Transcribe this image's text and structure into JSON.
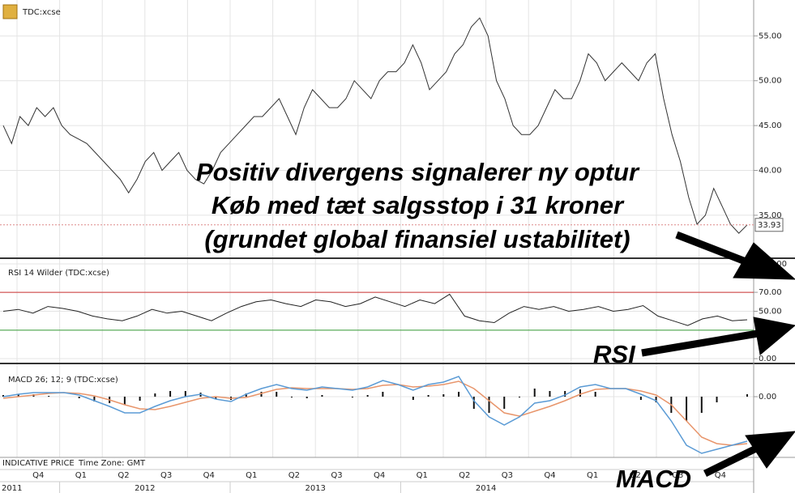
{
  "header": {
    "symbol": "TDC:xcse",
    "rsi_title": "RSI 14 Wilder (TDC:xcse)",
    "macd_title": "MACD 26; 12; 9 (TDC:xcse)",
    "note": "INDICATIVE PRICE",
    "timezone": "Time Zone: GMT"
  },
  "annotation": {
    "lines": [
      "Positiv divergens signalerer ny optur",
      "Køb med tæt salgsstop i 31 kroner",
      "(grundet global finansiel ustabilitet)"
    ],
    "rsi": "RSI",
    "macd": "MACD"
  },
  "axis": {
    "quarters": [
      "Q4",
      "Q1",
      "Q2",
      "Q3",
      "Q4",
      "Q1",
      "Q2",
      "Q3",
      "Q4",
      "Q1",
      "Q2",
      "Q3",
      "Q4",
      "Q1",
      "Q2",
      "Q3",
      "Q4"
    ],
    "years": [
      "2011",
      "2012",
      "2013",
      "2014"
    ]
  },
  "chart_data": [
    {
      "type": "line",
      "name": "price",
      "color": "#333333",
      "ylim": [
        30.3,
        59
      ],
      "yticks": [
        {
          "value": 35,
          "label": "35.00"
        },
        {
          "value": 40,
          "label": "40.00"
        },
        {
          "value": 45,
          "label": "45.00"
        },
        {
          "value": 50,
          "label": "50.00"
        },
        {
          "value": 55,
          "label": "55.00"
        }
      ],
      "last_price": 33.93,
      "values": [
        45,
        43,
        46,
        45,
        47,
        46,
        47,
        45,
        44,
        43.5,
        43,
        42,
        41,
        40,
        39,
        37.5,
        39,
        41,
        42,
        40,
        41,
        42,
        40,
        39,
        38.5,
        40,
        42,
        43,
        44,
        45,
        46,
        46,
        47,
        48,
        46,
        44,
        47,
        49,
        48,
        47,
        47,
        48,
        50,
        49,
        48,
        50,
        51,
        51,
        52,
        54,
        52,
        49,
        50,
        51,
        53,
        54,
        56,
        57,
        55,
        50,
        48,
        45,
        44,
        44,
        45,
        47,
        49,
        48,
        48,
        50,
        53,
        52,
        50,
        51,
        52,
        51,
        50,
        52,
        53,
        48,
        44,
        41,
        37,
        34,
        35,
        38,
        36,
        34,
        33,
        33.93
      ]
    },
    {
      "type": "line",
      "name": "rsi",
      "color": "#222222",
      "ylim": [
        -3.4,
        103.4
      ],
      "yticks": [
        {
          "value": 0,
          "label": "0.00"
        },
        {
          "value": 50,
          "label": "50.00"
        },
        {
          "value": 70,
          "label": "70.00"
        },
        {
          "value": 100,
          "label": "100.00"
        }
      ],
      "levels": [
        {
          "value": 70,
          "color": "#cc3333"
        },
        {
          "value": 30,
          "color": "#339933"
        }
      ],
      "values": [
        50,
        52,
        48,
        55,
        53,
        50,
        45,
        42,
        40,
        45,
        52,
        48,
        50,
        45,
        40,
        48,
        55,
        60,
        62,
        58,
        55,
        62,
        60,
        55,
        58,
        65,
        60,
        55,
        62,
        58,
        68,
        45,
        40,
        38,
        48,
        55,
        52,
        55,
        50,
        52,
        55,
        50,
        52,
        56,
        45,
        40,
        35,
        42,
        45,
        40,
        41
      ]
    },
    {
      "type": "macd",
      "name": "macd",
      "ylim": [
        -7.5,
        3.8
      ],
      "yticks": [
        {
          "value": 0,
          "label": "0.00"
        }
      ],
      "series": [
        {
          "color": "#5b9bd5",
          "values": [
            0,
            0.3,
            0.5,
            0.5,
            0.5,
            0.2,
            -0.5,
            -1.2,
            -2.0,
            -2.0,
            -1.2,
            -0.5,
            0,
            0.3,
            -0.3,
            -0.6,
            0.3,
            1.0,
            1.5,
            1.0,
            0.8,
            1.2,
            1.0,
            0.8,
            1.2,
            2.0,
            1.5,
            0.8,
            1.5,
            1.8,
            2.5,
            -0.5,
            -2.5,
            -3.5,
            -2.5,
            -0.8,
            -0.5,
            0.2,
            1.2,
            1.5,
            1.0,
            1.0,
            0.3,
            -0.5,
            -3.0,
            -6.0,
            -7.0,
            -6.5,
            -6.0,
            -5.5
          ]
        },
        {
          "color": "#e8956b",
          "values": [
            -0.2,
            0,
            0.2,
            0.4,
            0.5,
            0.4,
            0.1,
            -0.4,
            -1.0,
            -1.5,
            -1.6,
            -1.2,
            -0.7,
            -0.2,
            0,
            -0.2,
            -0.1,
            0.4,
            0.9,
            1.1,
            1.0,
            1.0,
            1.0,
            0.9,
            1.0,
            1.4,
            1.5,
            1.2,
            1.3,
            1.5,
            1.9,
            1.0,
            -0.5,
            -2.0,
            -2.4,
            -1.8,
            -1.2,
            -0.5,
            0.3,
            0.9,
            1.0,
            1.0,
            0.7,
            0.2,
            -1.0,
            -3.0,
            -5.0,
            -5.8,
            -6.0,
            -5.8
          ]
        },
        {
          "color": "#111111",
          "values": [
            0.2,
            0.3,
            0.3,
            0.1,
            0,
            -0.2,
            -0.6,
            -0.8,
            -1.0,
            -0.5,
            0.4,
            0.7,
            0.7,
            0.5,
            -0.3,
            -0.4,
            0.4,
            0.6,
            0.6,
            -0.1,
            -0.2,
            0.2,
            0,
            -0.1,
            0.2,
            0.6,
            0,
            -0.4,
            0.2,
            0.3,
            0.6,
            -1.5,
            -2.0,
            -1.5,
            -0.1,
            1.0,
            0.7,
            0.7,
            0.9,
            0.6,
            0,
            0,
            -0.4,
            -0.7,
            -2.0,
            -3.0,
            -2.0,
            -0.7,
            0,
            0.3
          ]
        }
      ]
    }
  ]
}
